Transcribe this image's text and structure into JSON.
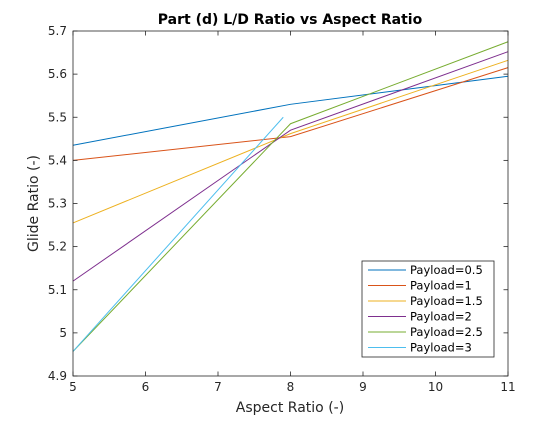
{
  "chart_data": {
    "type": "line",
    "title": "Part (d) L/D Ratio vs Aspect Ratio",
    "xlabel": "Aspect Ratio (-)",
    "ylabel": "Glide Ratio (-)",
    "xlim": [
      5,
      11
    ],
    "ylim": [
      4.9,
      5.7
    ],
    "xticks": [
      "5",
      "6",
      "7",
      "8",
      "9",
      "10",
      "11"
    ],
    "yticks": [
      "4.9",
      "5",
      "5.1",
      "5.2",
      "5.3",
      "5.4",
      "5.5",
      "5.6",
      "5.7"
    ],
    "grid": false,
    "legend_position": "bottom-right",
    "series": [
      {
        "name": "Payload=0.5",
        "color": "#0072BD",
        "x": [
          5,
          8,
          11
        ],
        "y": [
          5.435,
          5.53,
          5.595
        ]
      },
      {
        "name": "Payload=1",
        "color": "#D95319",
        "x": [
          5,
          8,
          11
        ],
        "y": [
          5.4,
          5.455,
          5.615
        ]
      },
      {
        "name": "Payload=1.5",
        "color": "#EDB120",
        "x": [
          5,
          8,
          11
        ],
        "y": [
          5.255,
          5.462,
          5.632
        ]
      },
      {
        "name": "Payload=2",
        "color": "#7E2F8E",
        "x": [
          5,
          8,
          11
        ],
        "y": [
          5.12,
          5.47,
          5.652
        ]
      },
      {
        "name": "Payload=2.5",
        "color": "#77AC30",
        "x": [
          5,
          8,
          11
        ],
        "y": [
          4.957,
          5.485,
          5.675
        ]
      },
      {
        "name": "Payload=3",
        "color": "#4DBEEE",
        "x": [
          5,
          7.9
        ],
        "y": [
          4.957,
          5.5
        ]
      }
    ]
  }
}
